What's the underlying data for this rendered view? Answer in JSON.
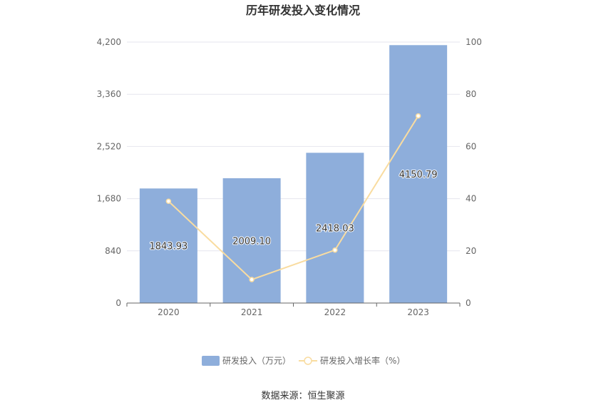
{
  "chart_data": {
    "type": "bar",
    "title": "历年研发投入变化情况",
    "categories": [
      "2020",
      "2021",
      "2022",
      "2023"
    ],
    "series": [
      {
        "name": "研发投入（万元）",
        "type": "bar",
        "axis": "left",
        "color": "#8eaedb",
        "values": [
          1843.93,
          2009.1,
          2418.03,
          4150.79
        ],
        "labels": [
          "1843.93",
          "2009.10",
          "2418.03",
          "4150.79"
        ]
      },
      {
        "name": "研发投入增长率（%）",
        "type": "line",
        "axis": "right",
        "color": "#f9dca0",
        "values": [
          39.0,
          9.0,
          20.3,
          71.7
        ]
      }
    ],
    "y_left": {
      "min": 0,
      "max": 4200,
      "ticks": [
        0,
        840,
        1680,
        2520,
        3360,
        4200
      ],
      "tick_labels": [
        "0",
        "840",
        "1,680",
        "2,520",
        "3,360",
        "4,200"
      ]
    },
    "y_right": {
      "min": 0,
      "max": 100,
      "ticks": [
        0,
        20,
        40,
        60,
        80,
        100
      ],
      "tick_labels": [
        "0",
        "20",
        "40",
        "60",
        "80",
        "100"
      ]
    },
    "grid": true,
    "legend": "bottom"
  },
  "source": "数据来源：恒生聚源"
}
